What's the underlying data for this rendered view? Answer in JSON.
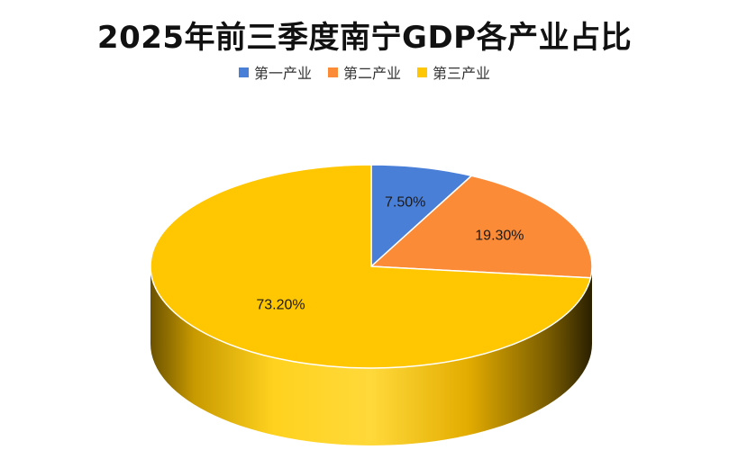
{
  "chart_data": {
    "type": "pie",
    "title": "2025年前三季度南宁GDP各产业占比",
    "categories": [
      "第一产业",
      "第二产业",
      "第三产业"
    ],
    "values": [
      7.5,
      19.3,
      73.2
    ],
    "labels": [
      "7.50%",
      "19.30%",
      "73.20%"
    ],
    "colors": [
      "#4A7FD8",
      "#FB8B37",
      "#FFC601"
    ],
    "legend_position": "top",
    "style": "3d"
  }
}
